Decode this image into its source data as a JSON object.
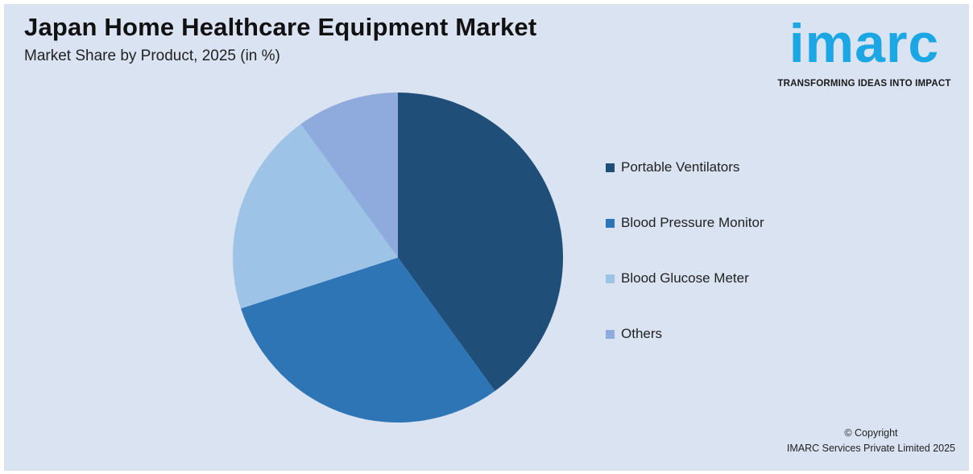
{
  "header": {
    "title": "Japan Home Healthcare Equipment Market",
    "subtitle": "Market Share by Product, 2025 (in %)"
  },
  "logo": {
    "wordmark": "imarc",
    "tagline": "TRANSFORMING IDEAS INTO IMPACT",
    "color": "#1ba7e4"
  },
  "chart_data": {
    "type": "pie",
    "title": "Japan Home Healthcare Equipment Market",
    "subtitle": "Market Share by Product, 2025 (in %)",
    "categories": [
      "Portable Ventilators",
      "Blood Pressure Monitor",
      "Blood Glucose Meter",
      "Others"
    ],
    "values": [
      40,
      30,
      20,
      10
    ],
    "colors": [
      "#1f4e79",
      "#2e75b6",
      "#9dc3e6",
      "#8faadc"
    ],
    "legend_position": "right",
    "start_angle": "12 o'clock",
    "direction": "clockwise"
  },
  "footer": {
    "copyright_line1": "© Copyright",
    "copyright_line2": "IMARC Services Private Limited 2025"
  }
}
